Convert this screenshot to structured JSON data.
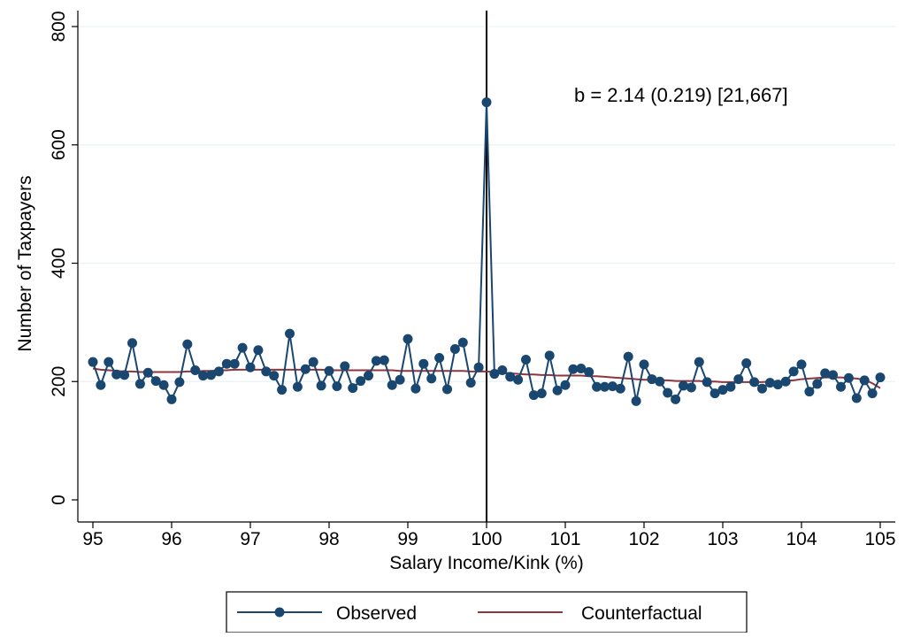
{
  "colors": {
    "observed": "#1a476f",
    "counterfactual": "#90353b",
    "axis": "#000000",
    "grid": "#eaf2f3"
  },
  "chart_data": {
    "type": "line",
    "title": "",
    "xlabel": "Salary Income/Kink (%)",
    "ylabel": "Number of Taxpayers",
    "xlim": [
      95,
      105
    ],
    "ylim": [
      0,
      800
    ],
    "xticks": [
      "95",
      "96",
      "97",
      "98",
      "99",
      "100",
      "101",
      "102",
      "103",
      "104",
      "105"
    ],
    "yticks": [
      "0",
      "200",
      "400",
      "600",
      "800"
    ],
    "grid": true,
    "kink_line_x": 100,
    "annotation": "b = 2.14 (0.219)   [21,667]",
    "legend": {
      "placement": "bottom-center"
    },
    "x": [
      95.0,
      95.1,
      95.2,
      95.3,
      95.4,
      95.5,
      95.6,
      95.7,
      95.8,
      95.9,
      96.0,
      96.1,
      96.2,
      96.3,
      96.4,
      96.5,
      96.6,
      96.7,
      96.8,
      96.9,
      97.0,
      97.1,
      97.2,
      97.3,
      97.4,
      97.5,
      97.6,
      97.7,
      97.8,
      97.9,
      98.0,
      98.1,
      98.2,
      98.3,
      98.4,
      98.5,
      98.6,
      98.7,
      98.8,
      98.9,
      99.0,
      99.1,
      99.2,
      99.3,
      99.4,
      99.5,
      99.6,
      99.7,
      99.8,
      99.9,
      100.0,
      100.1,
      100.2,
      100.3,
      100.4,
      100.5,
      100.6,
      100.7,
      100.8,
      100.9,
      101.0,
      101.1,
      101.2,
      101.3,
      101.4,
      101.5,
      101.6,
      101.7,
      101.8,
      101.9,
      102.0,
      102.1,
      102.2,
      102.3,
      102.4,
      102.5,
      102.6,
      102.7,
      102.8,
      102.9,
      103.0,
      103.1,
      103.2,
      103.3,
      103.4,
      103.5,
      103.6,
      103.7,
      103.8,
      103.9,
      104.0,
      104.1,
      104.2,
      104.3,
      104.4,
      104.5,
      104.6,
      104.7,
      104.8,
      104.9,
      105.0
    ],
    "series": [
      {
        "name": "Observed",
        "values": [
          233,
          194,
          233,
          212,
          211,
          265,
          196,
          215,
          201,
          194,
          170,
          199,
          263,
          219,
          210,
          211,
          217,
          230,
          230,
          257,
          224,
          253,
          217,
          210,
          186,
          281,
          191,
          221,
          233,
          193,
          218,
          192,
          226,
          189,
          201,
          210,
          235,
          236,
          194,
          203,
          272,
          188,
          230,
          205,
          240,
          187,
          255,
          266,
          198,
          224,
          672,
          213,
          219,
          208,
          203,
          237,
          177,
          180,
          244,
          185,
          194,
          221,
          222,
          216,
          191,
          191,
          192,
          188,
          242,
          167,
          229,
          204,
          200,
          181,
          170,
          193,
          190,
          233,
          199,
          180,
          186,
          191,
          204,
          231,
          199,
          188,
          198,
          195,
          200,
          217,
          229,
          183,
          196,
          214,
          211,
          191,
          206,
          172,
          202,
          180,
          207
        ]
      },
      {
        "name": "Counterfactual",
        "values": [
          222,
          220,
          219,
          218,
          217,
          217,
          216,
          216,
          216,
          216,
          216,
          216,
          217,
          217,
          218,
          218,
          219,
          219,
          220,
          220,
          220,
          220,
          220,
          220,
          220,
          220,
          220,
          220,
          220,
          220,
          219,
          219,
          219,
          219,
          219,
          219,
          219,
          219,
          219,
          218,
          218,
          218,
          218,
          218,
          218,
          218,
          218,
          218,
          217,
          217,
          217,
          216,
          215,
          214,
          213,
          212,
          212,
          211,
          211,
          210,
          210,
          210,
          210,
          209,
          209,
          208,
          207,
          206,
          205,
          204,
          203,
          203,
          202,
          202,
          201,
          201,
          201,
          201,
          200,
          200,
          199,
          199,
          199,
          199,
          199,
          199,
          200,
          200,
          201,
          202,
          204,
          205,
          206,
          207,
          207,
          207,
          206,
          205,
          203,
          197,
          189
        ]
      }
    ]
  }
}
